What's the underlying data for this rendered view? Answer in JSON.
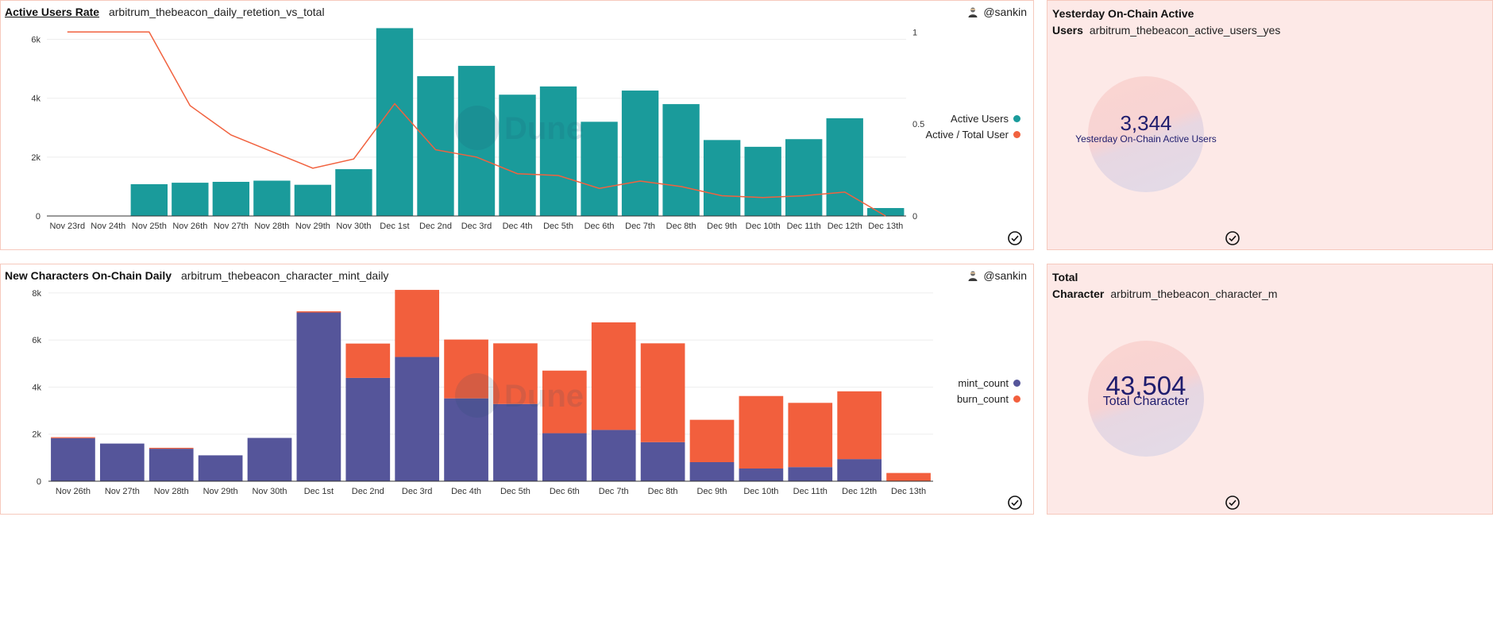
{
  "panels": {
    "active_users": {
      "title": "Active Users Rate",
      "query": "arbitrum_thebeacon_daily_retetion_vs_total",
      "author": "@sankin",
      "watermark": "Dune",
      "legend": [
        {
          "label": "Active Users",
          "color": "#1a9b9b"
        },
        {
          "label": "Active / Total User",
          "color": "#f1623f"
        }
      ]
    },
    "yesterday": {
      "title_line1": "Yesterday On-Chain Active",
      "title_line2": "Users",
      "query": "arbitrum_thebeacon_active_users_yes",
      "value": "3,344",
      "label": "Yesterday On-Chain Active Users"
    },
    "new_characters": {
      "title": "New Characters On-Chain Daily",
      "query": "arbitrum_thebeacon_character_mint_daily",
      "author": "@sankin",
      "watermark": "Dune",
      "legend": [
        {
          "label": "mint_count",
          "color": "#55559a"
        },
        {
          "label": "burn_count",
          "color": "#f25f3d"
        }
      ]
    },
    "total": {
      "title_line1": "Total",
      "title_line2": "Character",
      "query": "arbitrum_thebeacon_character_m",
      "value": "43,504",
      "label": "Total Character"
    }
  },
  "chart_data": [
    {
      "type": "bar",
      "title": "Active Users Rate",
      "categories": [
        "Nov 23rd",
        "Nov 24th",
        "Nov 25th",
        "Nov 26th",
        "Nov 27th",
        "Nov 28th",
        "Nov 29th",
        "Nov 30th",
        "Dec 1st",
        "Dec 2nd",
        "Dec 3rd",
        "Dec 4th",
        "Dec 5th",
        "Dec 6th",
        "Dec 7th",
        "Dec 8th",
        "Dec 9th",
        "Dec 10th",
        "Dec 11th",
        "Dec 12th",
        "Dec 13th"
      ],
      "series": [
        {
          "name": "Active Users",
          "type": "bar",
          "axis": "left",
          "color": "#1a9b9b",
          "values": [
            0,
            0,
            1080,
            1130,
            1160,
            1200,
            1060,
            1590,
            6380,
            4750,
            5100,
            4120,
            4400,
            3200,
            4260,
            3800,
            2580,
            2350,
            2610,
            3320,
            270
          ]
        },
        {
          "name": "Active / Total User",
          "type": "line",
          "axis": "right",
          "color": "#f1623f",
          "values": [
            1.0,
            1.0,
            1.0,
            0.6,
            0.44,
            0.35,
            0.26,
            0.31,
            0.61,
            0.36,
            0.32,
            0.23,
            0.22,
            0.15,
            0.19,
            0.16,
            0.11,
            0.1,
            0.11,
            0.13,
            0.0
          ]
        }
      ],
      "y_left": {
        "ticks": [
          0,
          2000,
          4000,
          6000
        ],
        "tick_labels": [
          "0",
          "2k",
          "4k",
          "6k"
        ],
        "ylim": [
          0,
          6500
        ]
      },
      "y_right": {
        "ticks": [
          0,
          0.5,
          1
        ],
        "tick_labels": [
          "0",
          "0.5",
          "1"
        ],
        "ylim": [
          0,
          1.04
        ]
      },
      "grid": true,
      "legend_position": "right"
    },
    {
      "type": "bar",
      "stacked": true,
      "title": "New Characters On-Chain Daily",
      "categories": [
        "Nov 26th",
        "Nov 27th",
        "Nov 28th",
        "Nov 29th",
        "Nov 30th",
        "Dec 1st",
        "Dec 2nd",
        "Dec 3rd",
        "Dec 4th",
        "Dec 5th",
        "Dec 6th",
        "Dec 7th",
        "Dec 8th",
        "Dec 9th",
        "Dec 10th",
        "Dec 11th",
        "Dec 12th",
        "Dec 13th"
      ],
      "series": [
        {
          "name": "mint_count",
          "color": "#55559a",
          "values": [
            1830,
            1600,
            1380,
            1100,
            1840,
            7170,
            4390,
            5280,
            3520,
            3280,
            2040,
            2180,
            1660,
            810,
            540,
            600,
            940,
            0
          ]
        },
        {
          "name": "burn_count",
          "color": "#f25f3d",
          "values": [
            40,
            0,
            40,
            0,
            0,
            50,
            1460,
            2850,
            2500,
            2580,
            2660,
            4570,
            4200,
            1800,
            3080,
            2730,
            2880,
            350
          ]
        }
      ],
      "y_axis": {
        "ticks": [
          0,
          2000,
          4000,
          6000,
          8000
        ],
        "tick_labels": [
          "0",
          "2k",
          "4k",
          "6k",
          "8k"
        ],
        "ylim": [
          0,
          8200
        ]
      },
      "grid": true,
      "legend_position": "right"
    }
  ]
}
